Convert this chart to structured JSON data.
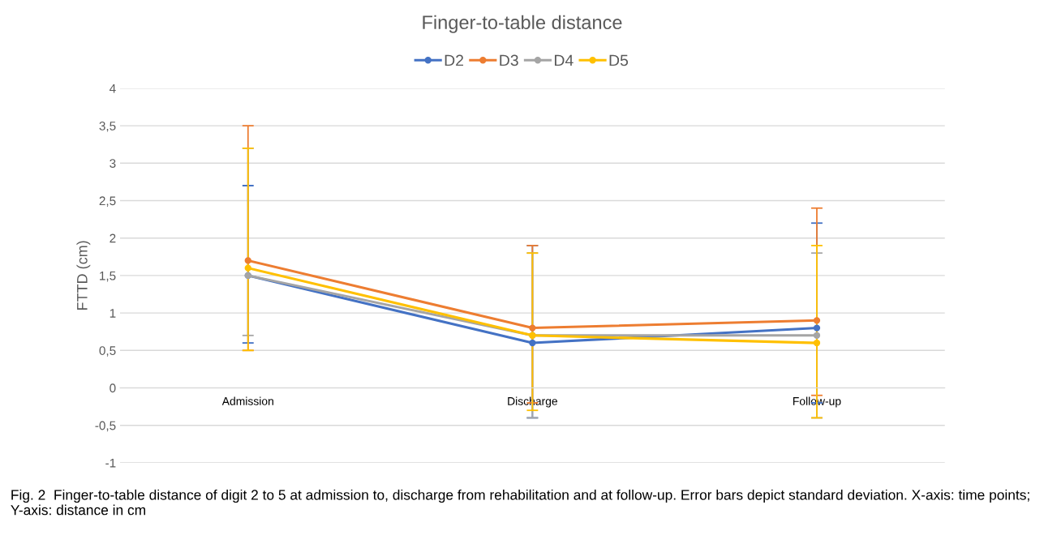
{
  "chart_data": {
    "type": "line",
    "title": "Finger-to-table distance",
    "ylabel": "FTTD (cm)",
    "categories": [
      "Admission",
      "Discharge",
      "Follow-up"
    ],
    "series": [
      {
        "name": "D2",
        "color": "#4472c4",
        "values": [
          1.5,
          0.6,
          0.8
        ],
        "errors": [
          [
            0.6,
            2.7
          ],
          [
            -0.4,
            1.9
          ],
          [
            -0.2,
            2.2
          ]
        ]
      },
      {
        "name": "D3",
        "color": "#ed7d31",
        "values": [
          1.7,
          0.8,
          0.9
        ],
        "errors": [
          [
            0.5,
            3.5
          ],
          [
            -0.2,
            1.9
          ],
          [
            -0.1,
            2.4
          ]
        ]
      },
      {
        "name": "D4",
        "color": "#a5a5a5",
        "values": [
          1.5,
          0.7,
          0.7
        ],
        "errors": [
          [
            0.7,
            3.2
          ],
          [
            -0.4,
            1.8
          ],
          [
            -0.4,
            1.8
          ]
        ]
      },
      {
        "name": "D5",
        "color": "#ffc000",
        "values": [
          1.6,
          0.7,
          0.6
        ],
        "errors": [
          [
            0.5,
            3.2
          ],
          [
            -0.3,
            1.8
          ],
          [
            -0.4,
            1.9
          ]
        ]
      }
    ],
    "ylim": [
      -1,
      4
    ],
    "yticks": [
      {
        "value": -1,
        "label": "-1"
      },
      {
        "value": -0.5,
        "label": "-0,5"
      },
      0,
      {
        "value": 0.5,
        "label": "0,5"
      },
      1,
      {
        "value": 1.5,
        "label": "1,5"
      },
      2,
      {
        "value": 2.5,
        "label": "2,5"
      },
      3,
      {
        "value": 3.5,
        "label": "3,5"
      },
      4
    ],
    "grid": "y",
    "legend": "top",
    "marker": "circle",
    "line_style": "solid",
    "annotations": [
      "Fig. 2  Finger-to-table distance of digit 2 to 5 at admission to, discharge from rehabilitation and at follow-up. Error bars depict standard deviation. X-axis: time points; Y-axis: distance in cm"
    ]
  }
}
